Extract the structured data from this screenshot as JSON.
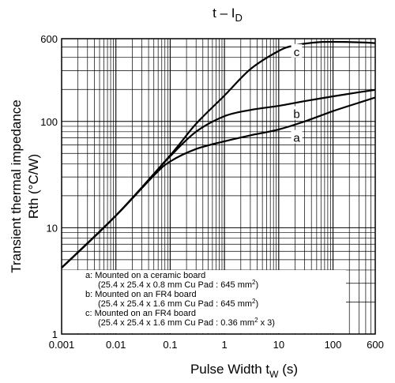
{
  "chart_data": {
    "type": "line",
    "title": "t – I",
    "title_subscript": "D",
    "xlabel_main": "Pulse Width",
    "xlabel_symbol": "t",
    "xlabel_subscript": "W",
    "xlabel_unit": "(s)",
    "ylabel_line1": "Transient thermal impedance",
    "ylabel_line2": "Rth (°C/W)",
    "x_scale": "log",
    "y_scale": "log",
    "xlim": [
      0.001,
      600
    ],
    "ylim": [
      1,
      600
    ],
    "grid": true,
    "x_ticks": [
      {
        "value": 0.001,
        "label": "0.001"
      },
      {
        "value": 0.01,
        "label": "0.01"
      },
      {
        "value": 0.1,
        "label": "0.1"
      },
      {
        "value": 1,
        "label": "1"
      },
      {
        "value": 10,
        "label": "10"
      },
      {
        "value": 100,
        "label": "100"
      },
      {
        "value": 600,
        "label": "600"
      }
    ],
    "y_ticks": [
      {
        "value": 1,
        "label": "1"
      },
      {
        "value": 10,
        "label": "10"
      },
      {
        "value": 100,
        "label": "100"
      },
      {
        "value": 600,
        "label": "600"
      }
    ],
    "series": [
      {
        "name": "a",
        "x": [
          0.001,
          0.01,
          0.05,
          0.1,
          0.3,
          1,
          3,
          10,
          30,
          100,
          300,
          600
        ],
        "y": [
          4.2,
          13,
          31,
          42,
          55,
          65,
          74,
          84,
          100,
          125,
          150,
          168
        ]
      },
      {
        "name": "b",
        "x": [
          0.001,
          0.01,
          0.05,
          0.1,
          0.3,
          1,
          3,
          10,
          30,
          100,
          300,
          600
        ],
        "y": [
          4.2,
          13,
          32,
          47,
          80,
          112,
          128,
          140,
          155,
          172,
          188,
          198
        ]
      },
      {
        "name": "c",
        "x": [
          0.001,
          0.01,
          0.1,
          0.3,
          1,
          3,
          10,
          20,
          50,
          100,
          300,
          600
        ],
        "y": [
          4.2,
          13,
          48,
          95,
          175,
          310,
          460,
          520,
          555,
          560,
          555,
          545
        ]
      }
    ],
    "curve_labels": [
      {
        "text": "c",
        "x": 20,
        "y": 450
      },
      {
        "text": "b",
        "x": 20,
        "y": 117
      },
      {
        "text": "a",
        "x": 20,
        "y": 70
      }
    ],
    "legend_placement": "bottom-left",
    "legend": [
      {
        "key": "a",
        "line1": "Mounted on a ceramic board",
        "line2": "(25.4 x 25.4 x 0.8 mm   Cu Pad : 645 mm",
        "line2_sup": "2",
        "line2_tail": ")"
      },
      {
        "key": "b",
        "line1": "Mounted on an FR4 board",
        "line2": "(25.4 x 25.4 x 1.6 mm   Cu Pad : 645 mm",
        "line2_sup": "2",
        "line2_tail": ")"
      },
      {
        "key": "c",
        "line1": "Mounted on an FR4 board",
        "line2": "(25.4 x 25.4 x 1.6 mm   Cu Pad : 0.36 mm",
        "line2_sup": "2",
        "line2_tail": " x 3)"
      }
    ]
  }
}
